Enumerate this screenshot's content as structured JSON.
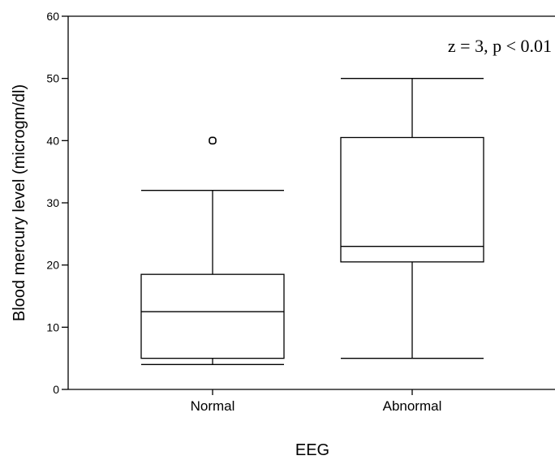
{
  "chart_data": {
    "type": "box",
    "xlabel": "EEG",
    "ylabel": "Blood mercury level (microgm/dl)",
    "ylim": [
      0,
      60
    ],
    "yticks": [
      0,
      10,
      20,
      30,
      40,
      50,
      60
    ],
    "categories": [
      "Normal",
      "Abnormal"
    ],
    "boxes": [
      {
        "category": "Normal",
        "min": 4,
        "q1": 5,
        "median": 12.5,
        "q3": 18.5,
        "max": 32,
        "outliers": [
          40
        ]
      },
      {
        "category": "Abnormal",
        "min": 5,
        "q1": 20.5,
        "median": 23,
        "q3": 40.5,
        "max": 50,
        "outliers": []
      }
    ],
    "annotation": "z = 3, p < 0.01",
    "grid": false
  }
}
